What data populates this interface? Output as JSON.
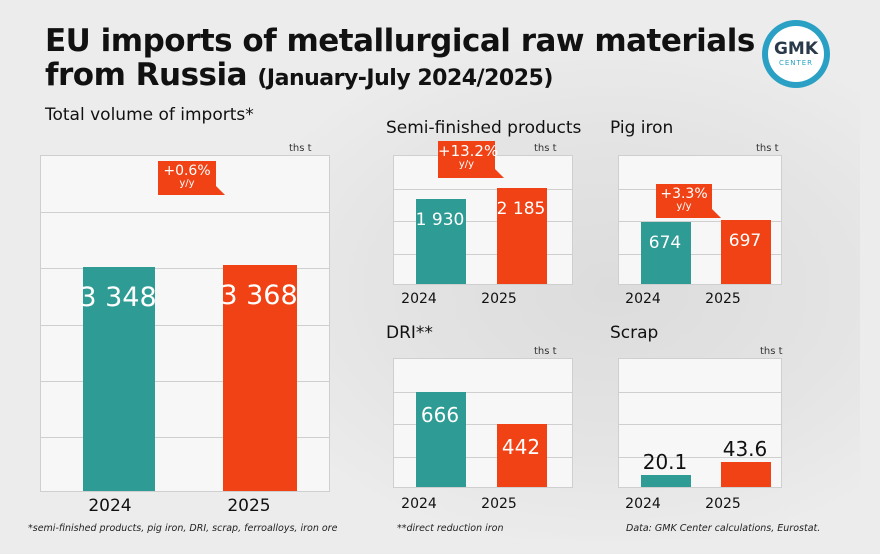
{
  "title_line1": "EU imports of metallurgical raw materials",
  "title_line2": "from Russia",
  "title_period": "(January-July 2024/2025)",
  "logo_text": "GMK",
  "logo_sub": "CENTER",
  "colors": {
    "y2024": "#2e9b95",
    "y2025": "#f04214"
  },
  "chart_data": [
    {
      "type": "bar",
      "title": "Total volume of imports*",
      "unit": "ths t",
      "categories": [
        "2024",
        "2025"
      ],
      "values": [
        3348,
        3368
      ],
      "value_labels": [
        "3 348",
        "3 368"
      ],
      "change": {
        "pct": "+0.6%",
        "label": "y/y"
      },
      "ylim": [
        0,
        5000
      ]
    },
    {
      "type": "bar",
      "title": "Semi-finished products",
      "unit": "ths t",
      "categories": [
        "2024",
        "2025"
      ],
      "values": [
        1930,
        2185
      ],
      "value_labels": [
        "1 930",
        "2 185"
      ],
      "change": {
        "pct": "+13.2%",
        "label": "y/y"
      },
      "ylim": [
        0,
        2900
      ]
    },
    {
      "type": "bar",
      "title": "Pig iron",
      "unit": "ths t",
      "categories": [
        "2024",
        "2025"
      ],
      "values": [
        674,
        697
      ],
      "value_labels": [
        "674",
        "697"
      ],
      "change": {
        "pct": "+3.3%",
        "label": "y/y"
      },
      "ylim": [
        0,
        1400
      ]
    },
    {
      "type": "bar",
      "title": "DRI**",
      "unit": "ths t",
      "categories": [
        "2024",
        "2025"
      ],
      "values": [
        666,
        442
      ],
      "value_labels": [
        "666",
        "442"
      ],
      "ylim": [
        0,
        900
      ]
    },
    {
      "type": "bar",
      "title": "Scrap",
      "unit": "ths t",
      "categories": [
        "2024",
        "2025"
      ],
      "values": [
        20.1,
        43.6
      ],
      "value_labels": [
        "20.1",
        "43.6"
      ],
      "ylim": [
        0,
        220
      ]
    }
  ],
  "footnotes": {
    "left": "*semi-finished products, pig iron, DRI, scrap, ferroalloys, iron ore",
    "middle": "**direct reduction iron",
    "right": "Data: GMK Center calculations, Eurostat."
  }
}
